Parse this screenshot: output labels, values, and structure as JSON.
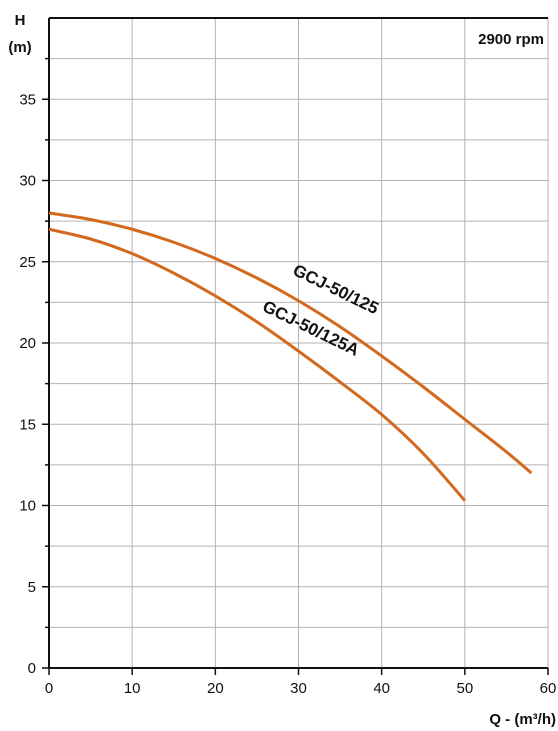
{
  "chart_data": {
    "type": "line",
    "ylabel_line1": "H",
    "ylabel_line2": "(m)",
    "xlabel": "Q - (m³/h)",
    "annotation": "2900 rpm",
    "xlim": [
      0,
      60
    ],
    "ylim": [
      0,
      40
    ],
    "xticks": [
      0,
      10,
      20,
      30,
      40,
      50,
      60
    ],
    "yticks": [
      0,
      5,
      10,
      15,
      20,
      25,
      30,
      35
    ],
    "grid": true,
    "series": [
      {
        "name": "GCJ-50/125",
        "color": "#d2691e",
        "x": [
          0,
          5,
          10,
          15,
          20,
          25,
          30,
          35,
          40,
          45,
          50,
          55,
          58
        ],
        "y": [
          28.0,
          27.6,
          27.0,
          26.2,
          25.2,
          24.0,
          22.6,
          21.0,
          19.2,
          17.3,
          15.3,
          13.3,
          12.0
        ]
      },
      {
        "name": "GCJ-50/125A",
        "color": "#d2691e",
        "x": [
          0,
          5,
          10,
          15,
          20,
          25,
          30,
          35,
          40,
          45,
          50
        ],
        "y": [
          27.0,
          26.4,
          25.5,
          24.3,
          22.9,
          21.3,
          19.5,
          17.6,
          15.6,
          13.2,
          10.3
        ]
      }
    ]
  }
}
